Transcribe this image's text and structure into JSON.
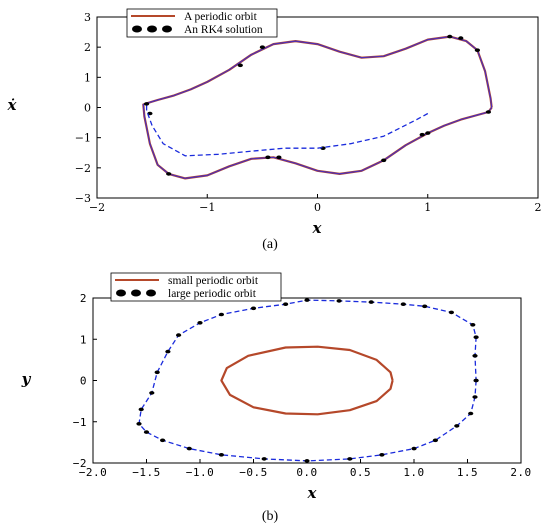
{
  "chart_data": [
    {
      "type": "line",
      "panel_label": "(a)",
      "xlabel": "x",
      "ylabel": "ẋ",
      "xlim": [
        -2,
        2
      ],
      "ylim": [
        -3,
        3
      ],
      "xticks": [
        "−2",
        "−1",
        "0",
        "1",
        "2"
      ],
      "yticks": [
        "3",
        "2",
        "1",
        "0",
        "−1",
        "−2",
        "−3"
      ],
      "legend_position": "top-left",
      "series": [
        {
          "name": "A periodic orbit",
          "color": "#b5482a",
          "style": "solid",
          "points": [
            [
              1.58,
              0.0
            ],
            [
              1.55,
              -0.15
            ],
            [
              1.45,
              -0.25
            ],
            [
              1.3,
              -0.4
            ],
            [
              1.15,
              -0.6
            ],
            [
              1.0,
              -0.85
            ],
            [
              0.8,
              -1.25
            ],
            [
              0.6,
              -1.75
            ],
            [
              0.4,
              -2.1
            ],
            [
              0.2,
              -2.2
            ],
            [
              0.0,
              -2.1
            ],
            [
              -0.2,
              -1.85
            ],
            [
              -0.4,
              -1.65
            ],
            [
              -0.6,
              -1.7
            ],
            [
              -0.8,
              -1.95
            ],
            [
              -1.0,
              -2.25
            ],
            [
              -1.2,
              -2.35
            ],
            [
              -1.35,
              -2.2
            ],
            [
              -1.45,
              -1.9
            ],
            [
              -1.52,
              -1.2
            ],
            [
              -1.57,
              -0.3
            ],
            [
              -1.58,
              0.1
            ],
            [
              -1.54,
              0.15
            ],
            [
              -1.45,
              0.25
            ],
            [
              -1.3,
              0.4
            ],
            [
              -1.15,
              0.6
            ],
            [
              -1.0,
              0.85
            ],
            [
              -0.8,
              1.25
            ],
            [
              -0.6,
              1.75
            ],
            [
              -0.4,
              2.1
            ],
            [
              -0.2,
              2.2
            ],
            [
              0.0,
              2.1
            ],
            [
              0.2,
              1.85
            ],
            [
              0.4,
              1.65
            ],
            [
              0.6,
              1.7
            ],
            [
              0.8,
              1.95
            ],
            [
              1.0,
              2.25
            ],
            [
              1.2,
              2.35
            ],
            [
              1.35,
              2.2
            ],
            [
              1.45,
              1.9
            ],
            [
              1.52,
              1.2
            ],
            [
              1.57,
              0.3
            ],
            [
              1.58,
              0.0
            ]
          ]
        },
        {
          "name": "An RK4 solution",
          "color": "#000000",
          "marker": "dots",
          "points": [
            [
              1.55,
              -0.15
            ],
            [
              1.0,
              -0.85
            ],
            [
              0.95,
              -0.9
            ],
            [
              0.6,
              -1.75
            ],
            [
              -0.45,
              -1.65
            ],
            [
              -0.35,
              -1.65
            ],
            [
              -1.55,
              0.12
            ],
            [
              -1.52,
              -0.2
            ],
            [
              -1.35,
              -2.2
            ],
            [
              -0.7,
              1.4
            ],
            [
              -0.5,
              2.0
            ],
            [
              1.2,
              2.35
            ],
            [
              1.3,
              2.3
            ],
            [
              1.45,
              1.9
            ],
            [
              0.05,
              -1.35
            ]
          ]
        },
        {
          "name": "",
          "color": "#1a2bdc",
          "style": "dashed",
          "points": [
            [
              1.0,
              -0.2
            ],
            [
              0.9,
              -0.4
            ],
            [
              0.6,
              -0.95
            ],
            [
              0.3,
              -1.2
            ],
            [
              0.0,
              -1.35
            ],
            [
              -0.3,
              -1.35
            ],
            [
              -0.6,
              -1.45
            ],
            [
              -0.9,
              -1.55
            ],
            [
              -1.2,
              -1.6
            ],
            [
              -1.4,
              -1.2
            ],
            [
              -1.5,
              -0.6
            ],
            [
              -1.55,
              -0.1
            ],
            [
              -1.55,
              0.12
            ]
          ]
        }
      ]
    },
    {
      "type": "line",
      "panel_label": "(b)",
      "xlabel": "x",
      "ylabel": "y",
      "xlim": [
        -2,
        2
      ],
      "ylim": [
        -2,
        2
      ],
      "xticks": [
        "−2.0",
        "−1.5",
        "−1.0",
        "−0.5",
        "0.0",
        "0.5",
        "1.0",
        "1.5",
        "2.0"
      ],
      "yticks": [
        "2",
        "1",
        "0",
        "−1",
        "−2"
      ],
      "legend_position": "top-left",
      "series": [
        {
          "name": "small periodic orbit",
          "color": "#b5482a",
          "style": "solid",
          "points": [
            [
              0.8,
              0.0
            ],
            [
              0.78,
              -0.2
            ],
            [
              0.65,
              -0.5
            ],
            [
              0.4,
              -0.72
            ],
            [
              0.1,
              -0.82
            ],
            [
              -0.2,
              -0.8
            ],
            [
              -0.5,
              -0.65
            ],
            [
              -0.72,
              -0.35
            ],
            [
              -0.8,
              0.0
            ],
            [
              -0.75,
              0.3
            ],
            [
              -0.55,
              0.6
            ],
            [
              -0.2,
              0.8
            ],
            [
              0.1,
              0.82
            ],
            [
              0.4,
              0.74
            ],
            [
              0.65,
              0.5
            ],
            [
              0.78,
              0.2
            ],
            [
              0.8,
              0.0
            ]
          ]
        },
        {
          "name": "large periodic orbit",
          "color": "#1a2bdc",
          "style": "dashed",
          "marker": "dots",
          "points": [
            [
              1.58,
              0.0
            ],
            [
              1.57,
              -0.4
            ],
            [
              1.53,
              -0.8
            ],
            [
              1.4,
              -1.1
            ],
            [
              1.2,
              -1.45
            ],
            [
              1.0,
              -1.65
            ],
            [
              0.7,
              -1.8
            ],
            [
              0.4,
              -1.9
            ],
            [
              0.0,
              -1.95
            ],
            [
              -0.4,
              -1.9
            ],
            [
              -0.8,
              -1.8
            ],
            [
              -1.1,
              -1.65
            ],
            [
              -1.35,
              -1.45
            ],
            [
              -1.5,
              -1.25
            ],
            [
              -1.57,
              -1.05
            ],
            [
              -1.55,
              -0.7
            ],
            [
              -1.45,
              -0.3
            ],
            [
              -1.4,
              0.2
            ],
            [
              -1.3,
              0.7
            ],
            [
              -1.2,
              1.1
            ],
            [
              -1.0,
              1.4
            ],
            [
              -0.8,
              1.6
            ],
            [
              -0.5,
              1.75
            ],
            [
              -0.2,
              1.85
            ],
            [
              0.0,
              1.95
            ],
            [
              0.3,
              1.93
            ],
            [
              0.6,
              1.9
            ],
            [
              0.9,
              1.85
            ],
            [
              1.1,
              1.8
            ],
            [
              1.35,
              1.65
            ],
            [
              1.55,
              1.35
            ],
            [
              1.58,
              1.05
            ],
            [
              1.57,
              0.6
            ],
            [
              1.58,
              0.0
            ]
          ]
        }
      ]
    }
  ]
}
